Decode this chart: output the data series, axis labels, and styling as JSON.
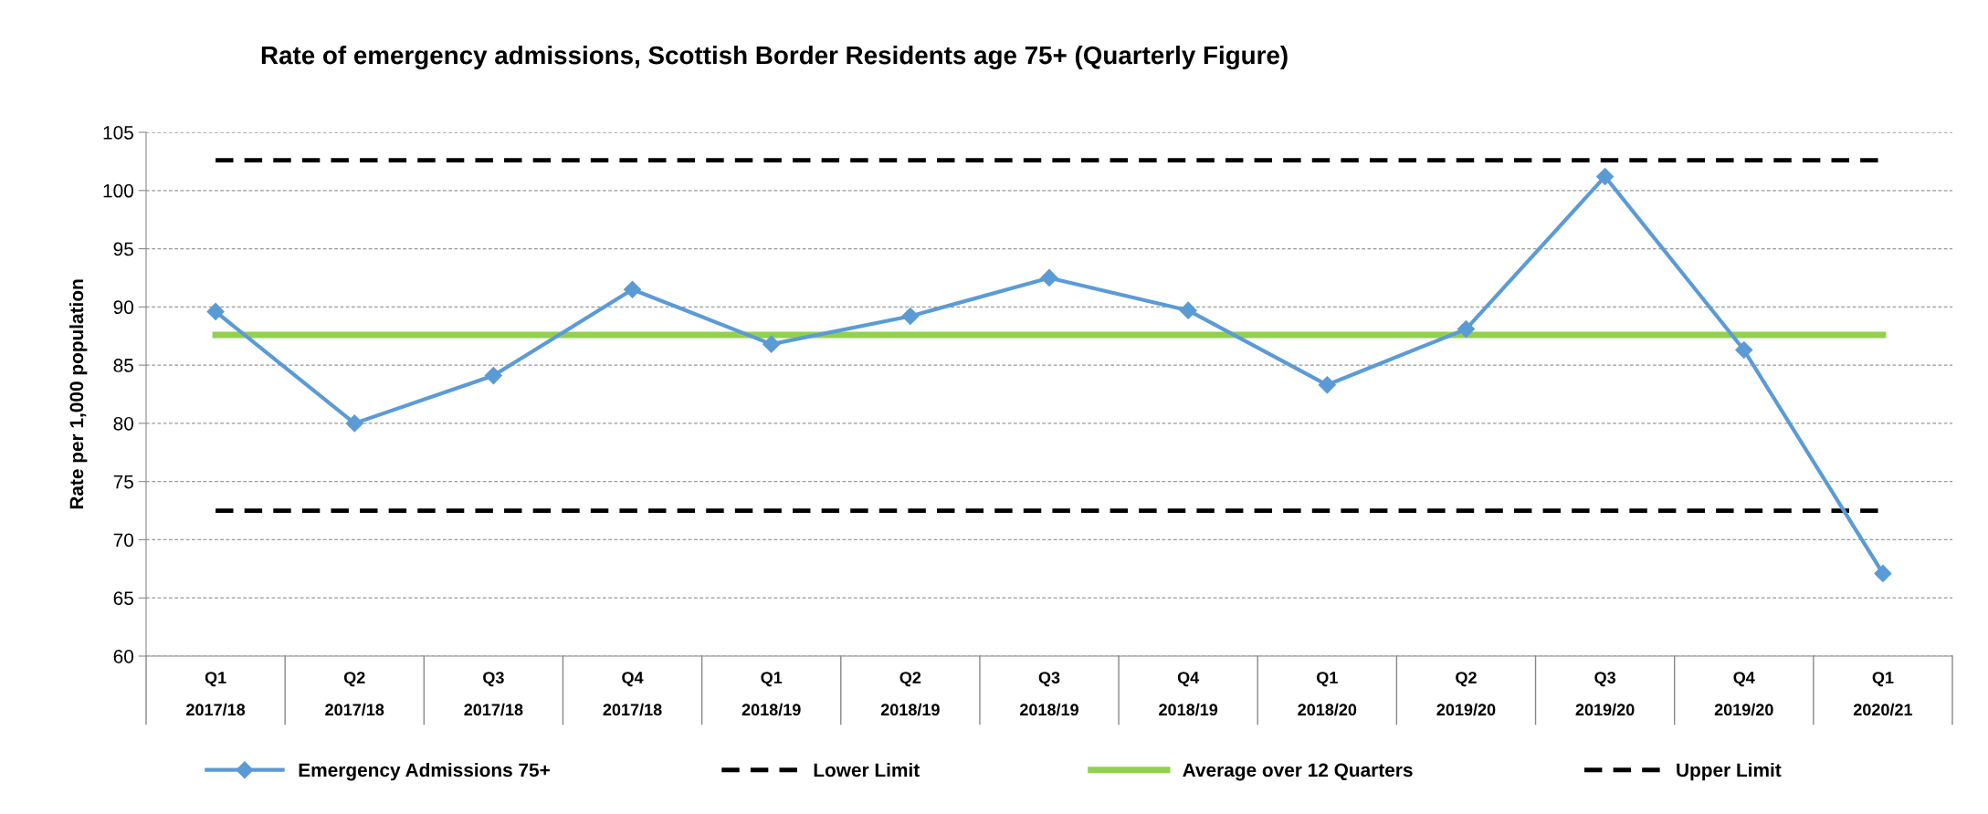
{
  "chart_data": {
    "type": "line",
    "title": "Rate of emergency admissions, Scottish Border Residents age 75+ (Quarterly Figure)",
    "ylabel": "Rate per 1,000 population",
    "categories": [
      "Q1\n2017/18",
      "Q2\n2017/18",
      "Q3\n2017/18",
      "Q4\n2017/18",
      "Q1\n2018/19",
      "Q2\n2018/19",
      "Q3\n2018/19",
      "Q4\n2018/19",
      "Q1\n2018/20",
      "Q2\n2019/20",
      "Q3\n2019/20",
      "Q4\n2019/20",
      "Q1\n2020/21"
    ],
    "series": [
      {
        "name": "Emergency Admissions 75+",
        "color": "#5b9bd5",
        "marker": "diamond",
        "line_style": "solid",
        "values": [
          89.6,
          80.0,
          84.1,
          91.5,
          86.8,
          89.2,
          92.5,
          89.7,
          83.3,
          88.1,
          101.2,
          86.3,
          67.1
        ]
      },
      {
        "name": "Lower Limit",
        "color": "#000000",
        "marker": "none",
        "line_style": "dashed",
        "values": [
          72.5,
          72.5,
          72.5,
          72.5,
          72.5,
          72.5,
          72.5,
          72.5,
          72.5,
          72.5,
          72.5,
          72.5,
          72.5
        ]
      },
      {
        "name": "Average over 12 Quarters",
        "color": "#92d050",
        "marker": "none",
        "line_style": "solid",
        "values": [
          87.6,
          87.6,
          87.6,
          87.6,
          87.6,
          87.6,
          87.6,
          87.6,
          87.6,
          87.6,
          87.6,
          87.6,
          87.6
        ]
      },
      {
        "name": "Upper Limit",
        "color": "#000000",
        "marker": "none",
        "line_style": "dashed",
        "values": [
          102.6,
          102.6,
          102.6,
          102.6,
          102.6,
          102.6,
          102.6,
          102.6,
          102.6,
          102.6,
          102.6,
          102.6,
          102.6
        ]
      }
    ],
    "ylim": [
      60,
      105
    ],
    "yticks": [
      60,
      65,
      70,
      75,
      80,
      85,
      90,
      95,
      100,
      105
    ],
    "grid": "y",
    "legend": "bottom"
  }
}
